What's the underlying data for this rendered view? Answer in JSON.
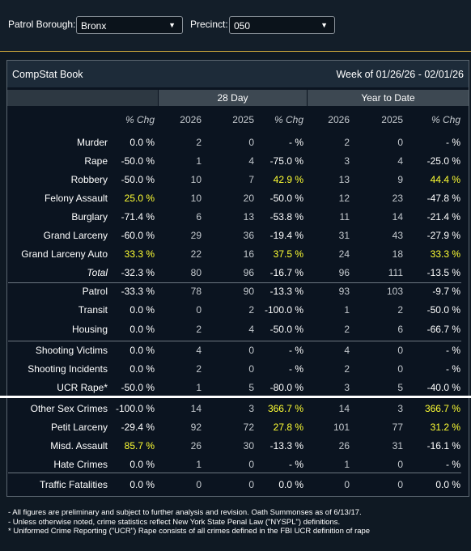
{
  "filters": {
    "borough_label": "Patrol Borough:",
    "borough_value": "Bronx",
    "precinct_label": "Precinct:",
    "precinct_value": "050"
  },
  "panel": {
    "title": "CompStat Book",
    "week": "Week of 01/26/26 - 02/01/26"
  },
  "groups": {
    "day28": "28 Day",
    "ytd": "Year to Date"
  },
  "columns": [
    "% Chg",
    "2026",
    "2025",
    "% Chg",
    "2026",
    "2025",
    "% Chg"
  ],
  "rows": [
    {
      "name": "Murder",
      "cells": [
        "0.0 %",
        "2",
        "0",
        "- %",
        "2",
        "0",
        "- %"
      ],
      "hl": []
    },
    {
      "name": "Rape",
      "cells": [
        "-50.0 %",
        "1",
        "4",
        "-75.0 %",
        "3",
        "4",
        "-25.0 %"
      ],
      "hl": []
    },
    {
      "name": "Robbery",
      "cells": [
        "-50.0 %",
        "10",
        "7",
        "42.9 %",
        "13",
        "9",
        "44.4 %"
      ],
      "hl": [
        3,
        6
      ]
    },
    {
      "name": "Felony Assault",
      "cells": [
        "25.0 %",
        "10",
        "20",
        "-50.0 %",
        "12",
        "23",
        "-47.8 %"
      ],
      "hl": [
        0
      ]
    },
    {
      "name": "Burglary",
      "cells": [
        "-71.4 %",
        "6",
        "13",
        "-53.8 %",
        "11",
        "14",
        "-21.4 %"
      ],
      "hl": []
    },
    {
      "name": "Grand Larceny",
      "cells": [
        "-60.0 %",
        "29",
        "36",
        "-19.4 %",
        "31",
        "43",
        "-27.9 %"
      ],
      "hl": []
    },
    {
      "name": "Grand Larceny Auto",
      "cells": [
        "33.3 %",
        "22",
        "16",
        "37.5 %",
        "24",
        "18",
        "33.3 %"
      ],
      "hl": [
        0,
        3,
        6
      ]
    },
    {
      "name": "Total",
      "italic": true,
      "cells": [
        "-32.3 %",
        "80",
        "96",
        "-16.7 %",
        "96",
        "111",
        "-13.5 %"
      ],
      "hl": []
    },
    {
      "name": "Patrol",
      "cells": [
        "-33.3 %",
        "78",
        "90",
        "-13.3 %",
        "93",
        "103",
        "-9.7 %"
      ],
      "hl": []
    },
    {
      "name": "Transit",
      "cells": [
        "0.0 %",
        "0",
        "2",
        "-100.0 %",
        "1",
        "2",
        "-50.0 %"
      ],
      "hl": []
    },
    {
      "name": "Housing",
      "cells": [
        "0.0 %",
        "2",
        "4",
        "-50.0 %",
        "2",
        "6",
        "-66.7 %"
      ],
      "hl": []
    },
    {
      "name": "Shooting Victims",
      "cells": [
        "0.0 %",
        "4",
        "0",
        "- %",
        "4",
        "0",
        "- %"
      ],
      "hl": []
    },
    {
      "name": "Shooting Incidents",
      "cells": [
        "0.0 %",
        "2",
        "0",
        "- %",
        "2",
        "0",
        "- %"
      ],
      "hl": []
    },
    {
      "name": "UCR Rape*",
      "cells": [
        "-50.0 %",
        "1",
        "5",
        "-80.0 %",
        "3",
        "5",
        "-40.0 %"
      ],
      "hl": []
    },
    {
      "name": "Other Sex Crimes",
      "cells": [
        "-100.0 %",
        "14",
        "3",
        "366.7 %",
        "14",
        "3",
        "366.7 %"
      ],
      "hl": [
        3,
        6
      ]
    },
    {
      "name": "Petit Larceny",
      "cells": [
        "-29.4 %",
        "92",
        "72",
        "27.8 %",
        "101",
        "77",
        "31.2 %"
      ],
      "hl": [
        3,
        6
      ]
    },
    {
      "name": "Misd. Assault",
      "cells": [
        "85.7 %",
        "26",
        "30",
        "-13.3 %",
        "26",
        "31",
        "-16.1 %"
      ],
      "hl": [
        0
      ]
    },
    {
      "name": "Hate Crimes",
      "cells": [
        "0.0 %",
        "1",
        "0",
        "- %",
        "1",
        "0",
        "- %"
      ],
      "hl": []
    },
    {
      "name": "Traffic Fatalities",
      "cells": [
        "0.0 %",
        "0",
        "0",
        "0.0 %",
        "0",
        "0",
        "0.0 %"
      ],
      "hl": []
    }
  ],
  "footer": [
    "- All figures are preliminary and subject to further analysis and revision. Oath Summonses as of 6/13/17.",
    "- Unless otherwise noted, crime statistics reflect New York State Penal Law (\"NYSPL\") definitions.",
    "* Uniformed Crime Reporting (\"UCR\") Rape consists of all crimes defined in the FBI UCR definition of rape"
  ],
  "colors": {
    "highlight": "#ffff33",
    "accent_line": "#c6a23a",
    "background": "#0f1923"
  }
}
